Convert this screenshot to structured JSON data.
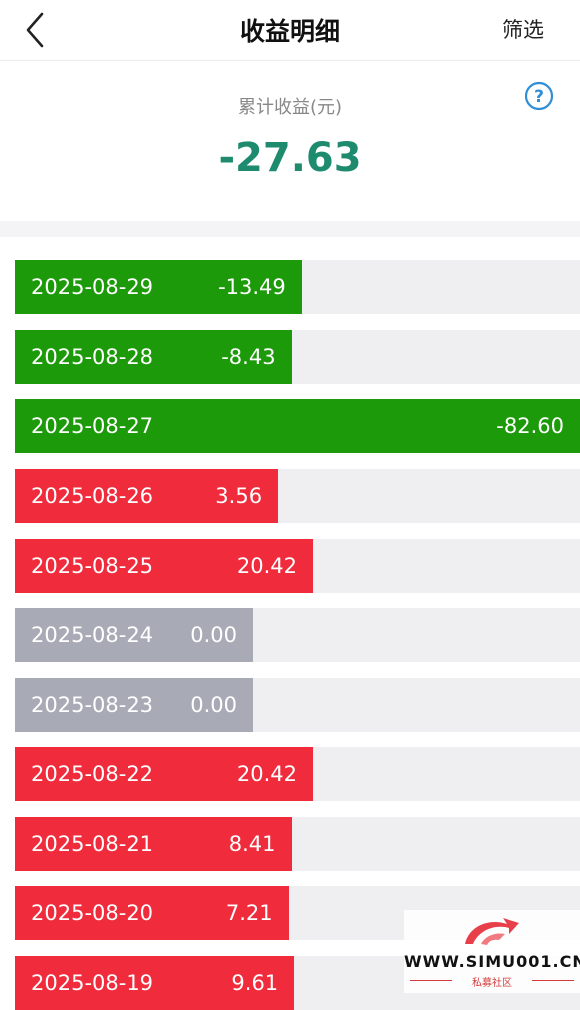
{
  "header": {
    "title": "收益明细",
    "filter_label": "筛选"
  },
  "summary": {
    "label": "累计收益(元)",
    "value": "-27.63"
  },
  "rows": [
    {
      "date": "2025-08-29",
      "value": "-13.49",
      "color": "green"
    },
    {
      "date": "2025-08-28",
      "value": "-8.43",
      "color": "green"
    },
    {
      "date": "2025-08-27",
      "value": "-82.60",
      "color": "green"
    },
    {
      "date": "2025-08-26",
      "value": "3.56",
      "color": "red"
    },
    {
      "date": "2025-08-25",
      "value": "20.42",
      "color": "red"
    },
    {
      "date": "2025-08-24",
      "value": "0.00",
      "color": "grey"
    },
    {
      "date": "2025-08-23",
      "value": "0.00",
      "color": "grey"
    },
    {
      "date": "2025-08-22",
      "value": "20.42",
      "color": "red"
    },
    {
      "date": "2025-08-21",
      "value": "8.41",
      "color": "red"
    },
    {
      "date": "2025-08-20",
      "value": "7.21",
      "color": "red"
    },
    {
      "date": "2025-08-19",
      "value": "9.61",
      "color": "red"
    }
  ],
  "colors": {
    "green": "#1c9a0a",
    "red": "#ef2b3c",
    "grey": "#a8abb6",
    "total": "#1e8a6e"
  },
  "watermark": {
    "text": "WWW.SIMU001.CN",
    "sub": "私募社区"
  }
}
